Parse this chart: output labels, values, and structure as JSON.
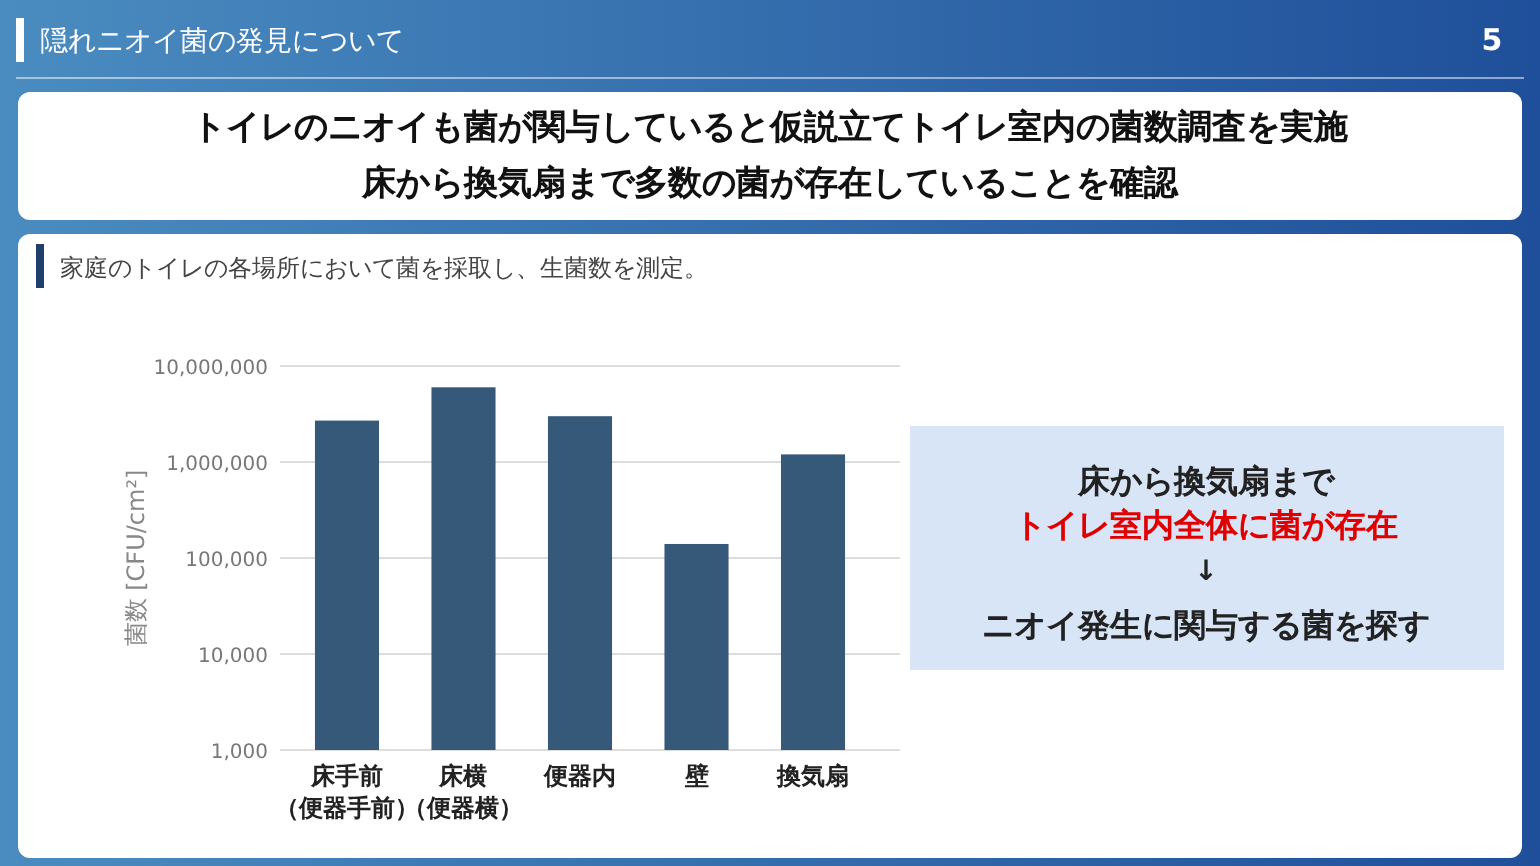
{
  "chart_data": {
    "type": "bar",
    "title": "隠れニオイ菌の発見について",
    "subtitle": "トイレのニオイも菌が関与していると仮説立てトイレ室内の菌数調査を実施床から換気扇まで多数の菌が存在していることを確認",
    "categories": [
      "床手前（便器手前）",
      "床横（便器横）",
      "便器内",
      "壁",
      "換気扇"
    ],
    "values": [
      2700000,
      6000000,
      3000000,
      140000,
      1200000
    ],
    "color": "#36597a",
    "ylabel": "菌数 [CFU/cm²]",
    "log": true,
    "ylim": [
      1000,
      10000000
    ],
    "yticks": [
      {
        "value": 1000,
        "label": "1,000"
      },
      {
        "value": 10000,
        "label": "10,000"
      },
      {
        "value": 100000,
        "label": "100,000"
      },
      {
        "value": 1000000,
        "label": "1,000,000"
      },
      {
        "value": 10000000,
        "label": "10,000,000"
      }
    ],
    "grid": "y",
    "annotations": [
      "5",
      "家庭のトイレの各場所において菌を採取し、生菌数を測定。",
      "床から換気扇まで",
      "トイレ室内全体に菌が存在",
      "↓",
      "ニオイ発生に関与する菌を探す"
    ]
  }
}
